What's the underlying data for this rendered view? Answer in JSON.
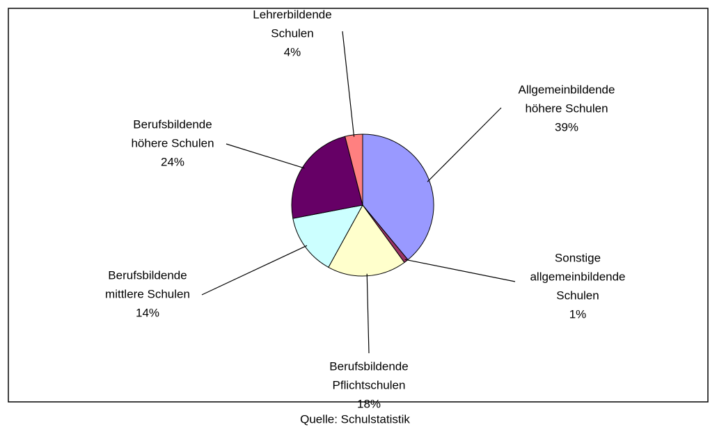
{
  "chart_data": {
    "type": "pie",
    "categories": [
      [
        "Allgemeinbildende",
        "höhere Schulen"
      ],
      [
        "Sonstige",
        "allgemeinbildende",
        "Schulen"
      ],
      [
        "Berufsbildende",
        "Pflichtschulen"
      ],
      [
        "Berufsbildende",
        "mittlere Schulen"
      ],
      [
        "Berufsbildende",
        "höhere Schulen"
      ],
      [
        "Lehrerbildende",
        "Schulen"
      ]
    ],
    "values": [
      39,
      1,
      18,
      14,
      24,
      4
    ],
    "value_labels": [
      "39%",
      "1%",
      "18%",
      "14%",
      "24%",
      "4%"
    ],
    "colors": [
      "#9999ff",
      "#993366",
      "#ffffcc",
      "#ccffff",
      "#660066",
      "#ff8080"
    ],
    "source": "Quelle: Schulstatistik"
  }
}
